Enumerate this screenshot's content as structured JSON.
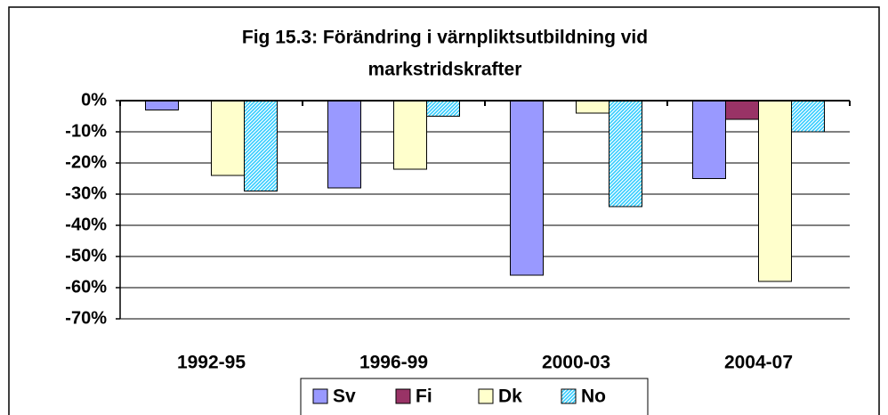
{
  "chart_data": {
    "type": "bar",
    "title": [
      "Fig 15.3: Förändring i värnpliktsutbildning vid",
      "markstridskrafter"
    ],
    "categories": [
      "1992-95",
      "1996-99",
      "2000-03",
      "2004-07"
    ],
    "series": [
      {
        "name": "Sv",
        "color": "#9999ff",
        "values": [
          -3,
          -28,
          -56,
          -25
        ]
      },
      {
        "name": "Fi",
        "color": "#993366",
        "values": [
          0,
          0,
          0,
          -6
        ]
      },
      {
        "name": "Dk",
        "color": "#ffffcc",
        "values": [
          -24,
          -22,
          -4,
          -58
        ]
      },
      {
        "name": "No",
        "color": "#33ccff",
        "hatch": true,
        "values": [
          -29,
          -5,
          -34,
          -10
        ]
      }
    ],
    "ylim": [
      -70,
      0
    ],
    "yticks": [
      {
        "value": 0,
        "label": "0%"
      },
      {
        "value": -10,
        "label": "-10%"
      },
      {
        "value": -20,
        "label": "-20%"
      },
      {
        "value": -30,
        "label": "-30%"
      },
      {
        "value": -40,
        "label": "-40%"
      },
      {
        "value": -50,
        "label": "-50%"
      },
      {
        "value": -60,
        "label": "-60%"
      },
      {
        "value": -70,
        "label": "-70%"
      }
    ],
    "grid": true,
    "legend": "bottom"
  }
}
